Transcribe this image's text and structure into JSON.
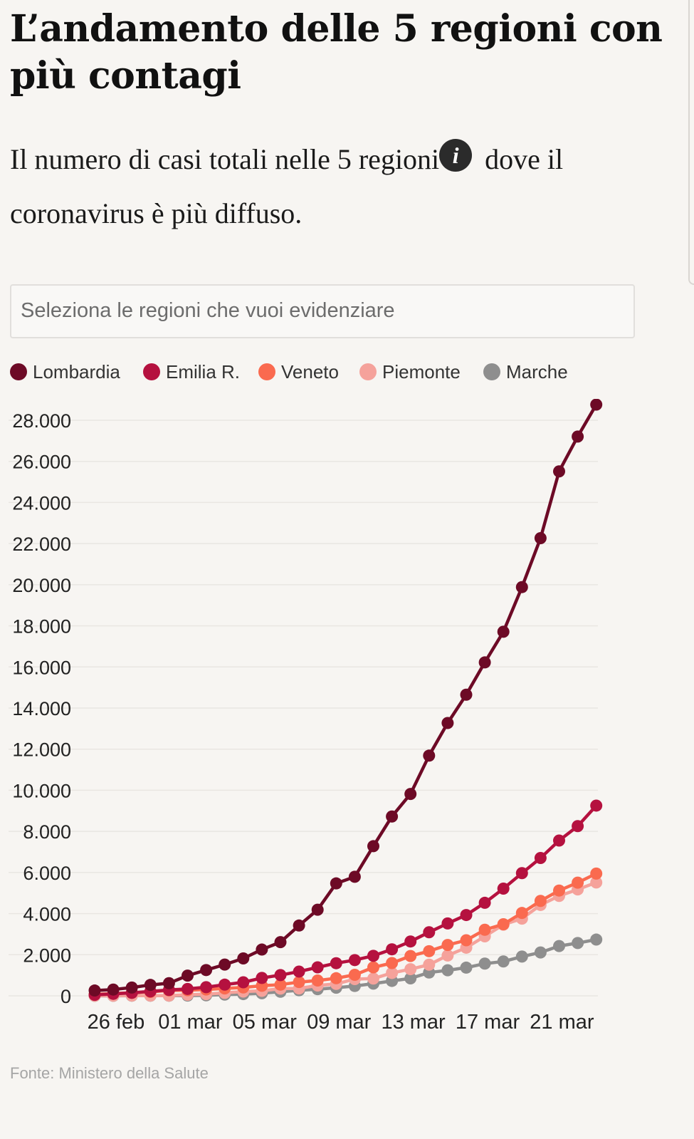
{
  "header": {
    "title": "L’andamento delle 5 regioni con più contagi",
    "subtitle_before": "Il numero di casi totali nelle 5 regioni",
    "info_icon": "info-icon",
    "info_glyph": "i",
    "subtitle_after": " dove il coronavirus è più diffuso."
  },
  "select": {
    "placeholder": "Seleziona le regioni che vuoi evidenziare"
  },
  "chart_data": {
    "type": "line",
    "x": [
      "26 feb",
      "27 feb",
      "28 feb",
      "29 feb",
      "01 mar",
      "02 mar",
      "03 mar",
      "04 mar",
      "05 mar",
      "06 mar",
      "07 mar",
      "08 mar",
      "09 mar",
      "10 mar",
      "11 mar",
      "12 mar",
      "13 mar",
      "14 mar",
      "15 mar",
      "16 mar",
      "17 mar",
      "18 mar",
      "19 mar",
      "20 mar",
      "21 mar",
      "22 mar",
      "23 mar",
      "24 mar"
    ],
    "xticks": [
      "26 feb",
      "01 mar",
      "05 mar",
      "09 mar",
      "13 mar",
      "17 mar",
      "21 mar"
    ],
    "yticks": [
      "0",
      "2.000",
      "4.000",
      "6.000",
      "8.000",
      "10.000",
      "12.000",
      "14.000",
      "16.000",
      "18.000",
      "20.000",
      "22.000",
      "24.000",
      "26.000",
      "28.000"
    ],
    "ylim": [
      0,
      28000
    ],
    "grid": true,
    "legend_position": "top",
    "series": [
      {
        "name": "Lombardia",
        "color": "#6d0a26",
        "values": [
          258,
          305,
          403,
          531,
          615,
          984,
          1254,
          1520,
          1820,
          2251,
          2612,
          3420,
          4189,
          5469,
          5791,
          7280,
          8725,
          9820,
          11685,
          13272,
          14649,
          16220,
          17713,
          19884,
          22264,
          25515,
          27206,
          28761
        ]
      },
      {
        "name": "Emilia R.",
        "color": "#b5113f",
        "values": [
          47,
          97,
          145,
          217,
          285,
          335,
          420,
          544,
          658,
          870,
          1010,
          1180,
          1386,
          1587,
          1739,
          1947,
          2263,
          2644,
          3093,
          3522,
          3931,
          4525,
          5214,
          5968,
          6705,
          7555,
          8256,
          9254
        ]
      },
      {
        "name": "Veneto",
        "color": "#fa6a4f",
        "values": [
          71,
          111,
          151,
          191,
          263,
          273,
          307,
          360,
          407,
          488,
          543,
          670,
          744,
          856,
          1023,
          1384,
          1595,
          1937,
          2172,
          2473,
          2704,
          3214,
          3484,
          4031,
          4617,
          5122,
          5505,
          5948
        ]
      },
      {
        "name": "Piemonte",
        "color": "#f5a29b",
        "values": [
          3,
          3,
          11,
          11,
          11,
          51,
          82,
          143,
          207,
          243,
          350,
          360,
          501,
          580,
          815,
          840,
          1111,
          1297,
          1516,
          1962,
          2341,
          2893,
          3461,
          3755,
          4420,
          4861,
          5175,
          5515
        ]
      },
      {
        "name": "Marche",
        "color": "#8e8e8e",
        "values": [
          0,
          0,
          6,
          6,
          6,
          11,
          25,
          61,
          84,
          124,
          199,
          271,
          323,
          394,
          479,
          592,
          725,
          848,
          1133,
          1242,
          1371,
          1568,
          1671,
          1911,
          2110,
          2421,
          2569,
          2736
        ]
      }
    ]
  },
  "footer": {
    "source": "Fonte: Ministero della Salute"
  }
}
